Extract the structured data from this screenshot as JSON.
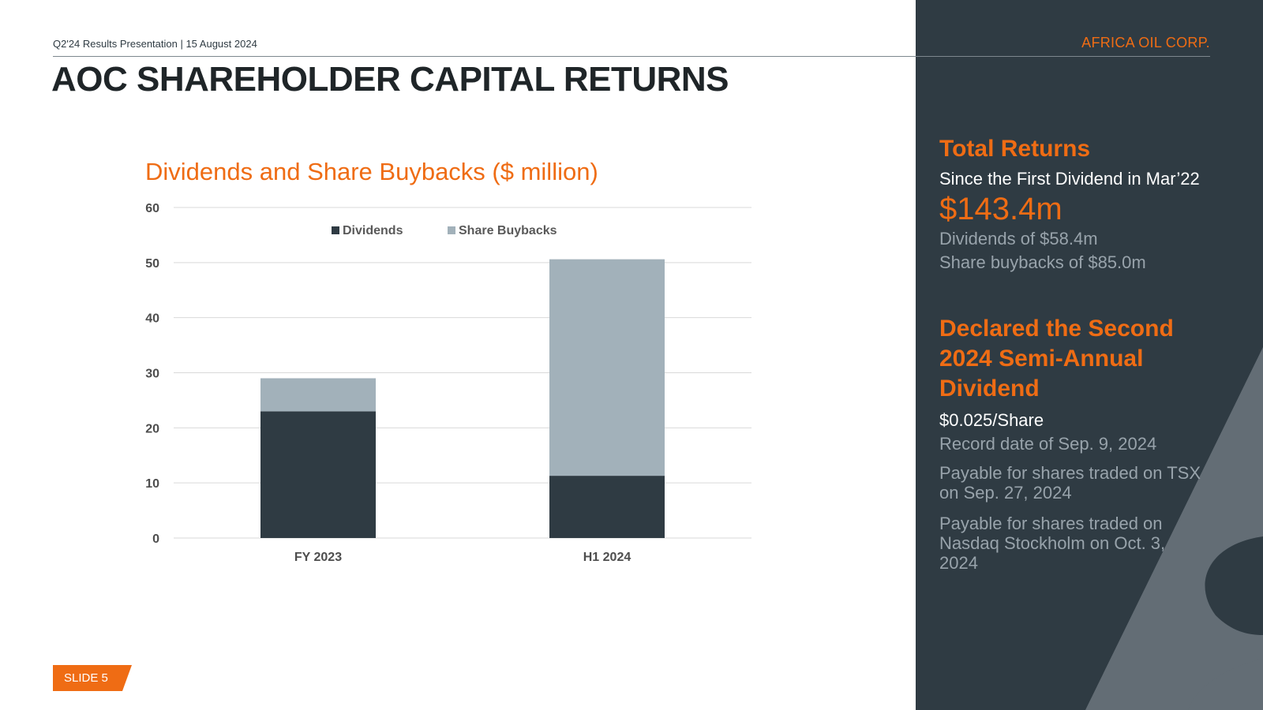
{
  "header": {
    "meta": "Q2'24 Results Presentation  | 15 August 2024",
    "brand": "AFRICA OIL CORP.",
    "title": "AOC SHAREHOLDER CAPITAL RETURNS"
  },
  "colors": {
    "accent": "#ef6c14",
    "dark": "#2f3b43",
    "dividends": "#2f3b43",
    "buybacks": "#a2b1ba"
  },
  "chart_data": {
    "type": "bar",
    "stacked": true,
    "title": "Dividends and Share Buybacks ($ million)",
    "categories": [
      "FY 2023",
      "H1 2024"
    ],
    "series": [
      {
        "name": "Dividends",
        "values": [
          23.0,
          11.3
        ]
      },
      {
        "name": "Share Buybacks",
        "values": [
          6.0,
          39.3
        ]
      }
    ],
    "ylim": [
      0,
      60
    ],
    "yticks": [
      0,
      10,
      20,
      30,
      40,
      50,
      60
    ],
    "grid": true,
    "legend": "top-center"
  },
  "sidebar": {
    "total": {
      "heading": "Total Returns",
      "subtitle": "Since the First Dividend in Mar’22",
      "amount": "$143.4m",
      "line1": "Dividends of $58.4m",
      "line2": "Share buybacks of $85.0m"
    },
    "dividend": {
      "heading": "Declared the Second 2024 Semi-Annual Dividend",
      "per_share": "$0.025/Share",
      "record": "Record date of Sep. 9, 2024",
      "tsx": "Payable for shares traded on TSX on Sep. 27, 2024",
      "nasdaq": "Payable for shares traded on Nasdaq Stockholm on Oct. 3, 2024"
    }
  },
  "footer": {
    "slide": "SLIDE 5"
  }
}
